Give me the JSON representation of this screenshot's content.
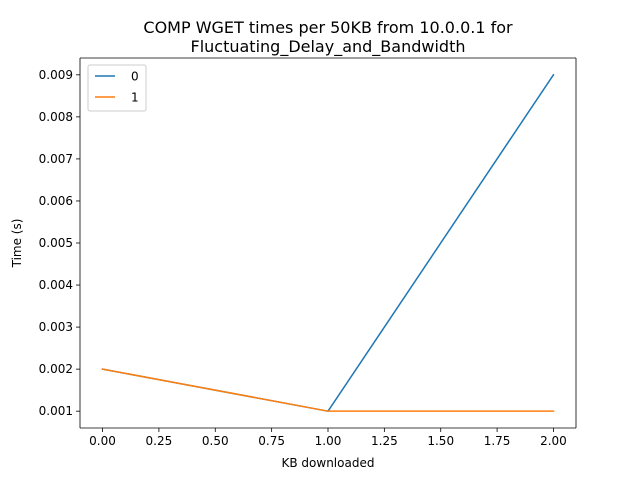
{
  "chart_data": {
    "type": "line",
    "title": [
      "COMP WGET times per 50KB from 10.0.0.1 for",
      "Fluctuating_Delay_and_Bandwidth"
    ],
    "xlabel": "KB downloaded",
    "ylabel": "Time (s)",
    "xlim": [
      -0.1,
      2.1
    ],
    "ylim": [
      0.0006,
      0.0094
    ],
    "x_ticks": [
      "0.00",
      "0.25",
      "0.50",
      "0.75",
      "1.00",
      "1.25",
      "1.50",
      "1.75",
      "2.00"
    ],
    "y_ticks": [
      "0.001",
      "0.002",
      "0.003",
      "0.004",
      "0.005",
      "0.006",
      "0.007",
      "0.008",
      "0.009"
    ],
    "grid": false,
    "legend_position": "top-left",
    "series": [
      {
        "name": "0",
        "color": "#1f77b4",
        "x": [
          0,
          1,
          2
        ],
        "y": [
          0.002,
          0.001,
          0.009
        ]
      },
      {
        "name": "1",
        "color": "#ff7f0e",
        "x": [
          0,
          1,
          2
        ],
        "y": [
          0.002,
          0.001,
          0.001
        ]
      }
    ]
  }
}
